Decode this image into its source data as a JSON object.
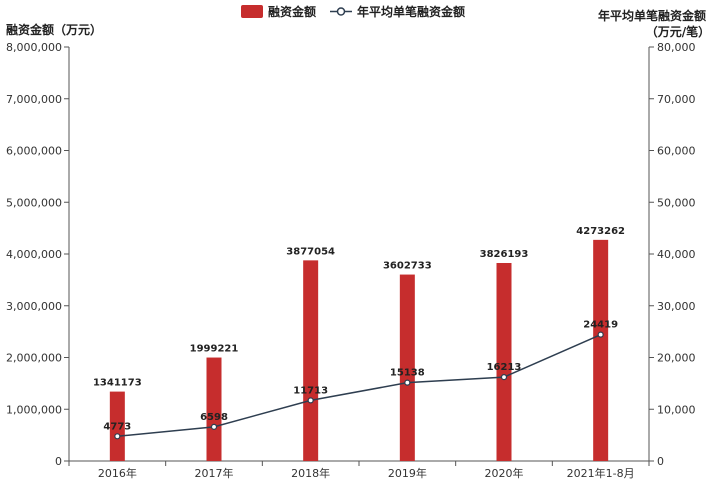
{
  "chart_data": {
    "type": "bar+line",
    "categories": [
      "2016年",
      "2017年",
      "2018年",
      "2019年",
      "2020年",
      "2021年1-8月"
    ],
    "series": [
      {
        "name": "融资金额",
        "type": "bar",
        "axis": "left",
        "color": "#c62d2d",
        "values": [
          1341173,
          1999221,
          3877054,
          3602733,
          3826193,
          4273262
        ],
        "labels": [
          "1341173",
          "1999221",
          "3877054",
          "3602733",
          "3826193",
          "4273262"
        ]
      },
      {
        "name": "年平均单笔融资金额",
        "type": "line",
        "axis": "right",
        "color": "#2e3e50",
        "values": [
          4773,
          6598,
          11713,
          15138,
          16213,
          24419
        ],
        "labels": [
          "4773",
          "6598",
          "11713",
          "15138",
          "16213",
          "24419"
        ]
      }
    ],
    "y_left": {
      "label": "融资金额（万元）",
      "ylim": [
        0,
        8000000
      ],
      "ticks": [
        0,
        1000000,
        2000000,
        3000000,
        4000000,
        5000000,
        6000000,
        7000000,
        8000000
      ],
      "tick_labels": [
        "0",
        "1,000,000",
        "2,000,000",
        "3,000,000",
        "4,000,000",
        "5,000,000",
        "6,000,000",
        "7,000,000",
        "8,000,000"
      ]
    },
    "y_right": {
      "label_line1": "年平均单笔融资金额",
      "label_line2": "（万元/笔）",
      "ylim": [
        0,
        80000
      ],
      "ticks": [
        0,
        10000,
        20000,
        30000,
        40000,
        50000,
        60000,
        70000,
        80000
      ],
      "tick_labels": [
        "0",
        "10,000",
        "20,000",
        "30,000",
        "40,000",
        "50,000",
        "60,000",
        "70,000",
        "80,000"
      ]
    },
    "legend": {
      "position": "top-center",
      "items": [
        "融资金额",
        "年平均单笔融资金额"
      ]
    },
    "grid": false
  }
}
